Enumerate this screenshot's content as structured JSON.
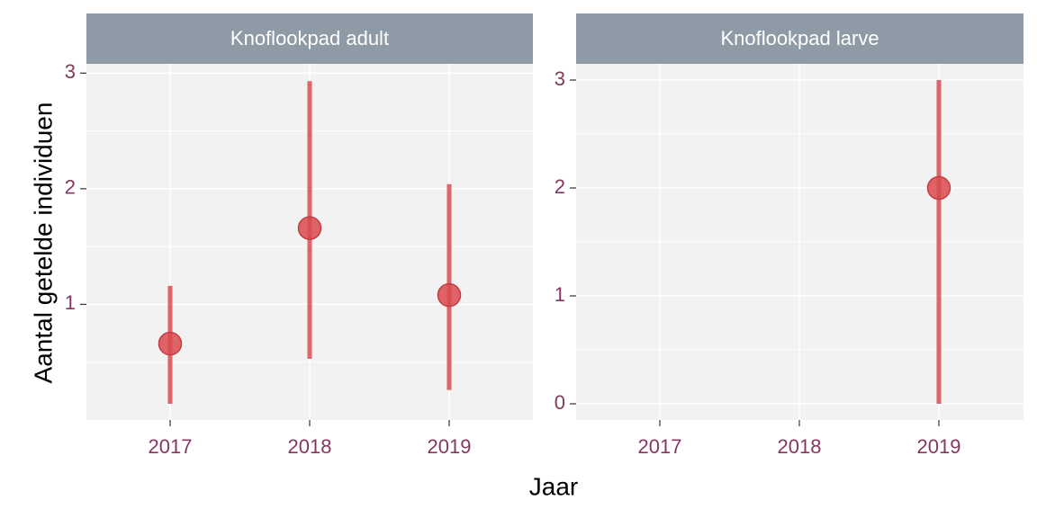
{
  "chart_data": {
    "type": "scatter",
    "xlabel": "Jaar",
    "ylabel": "Aantal getelde individuen",
    "categories": [
      "2017",
      "2018",
      "2019"
    ],
    "colors": {
      "point": "#d94a4f",
      "panel_bg": "#f2f2f2",
      "strip_bg": "#8e9ba6",
      "tick_label": "#843860",
      "grid": "#ffffff"
    },
    "panels": [
      {
        "title": "Knoflookpad adult",
        "ylim": [
          0.0,
          3.08
        ],
        "yticks": [
          1,
          2,
          3
        ],
        "yticklabels": [
          "1",
          "2",
          "3"
        ],
        "points": [
          {
            "x": "2017",
            "y": 0.66,
            "lower": 0.14,
            "upper": 1.16
          },
          {
            "x": "2018",
            "y": 1.66,
            "lower": 0.53,
            "upper": 2.93
          },
          {
            "x": "2019",
            "y": 1.08,
            "lower": 0.26,
            "upper": 2.04
          }
        ]
      },
      {
        "title": "Knoflookpad larve",
        "ylim": [
          -0.15,
          3.15
        ],
        "yticks": [
          0,
          1,
          2,
          3
        ],
        "yticklabels": [
          "0",
          "1",
          "2",
          "3"
        ],
        "points": [
          {
            "x": "2019",
            "y": 2.0,
            "lower": 0.0,
            "upper": 3.0
          }
        ]
      }
    ]
  }
}
